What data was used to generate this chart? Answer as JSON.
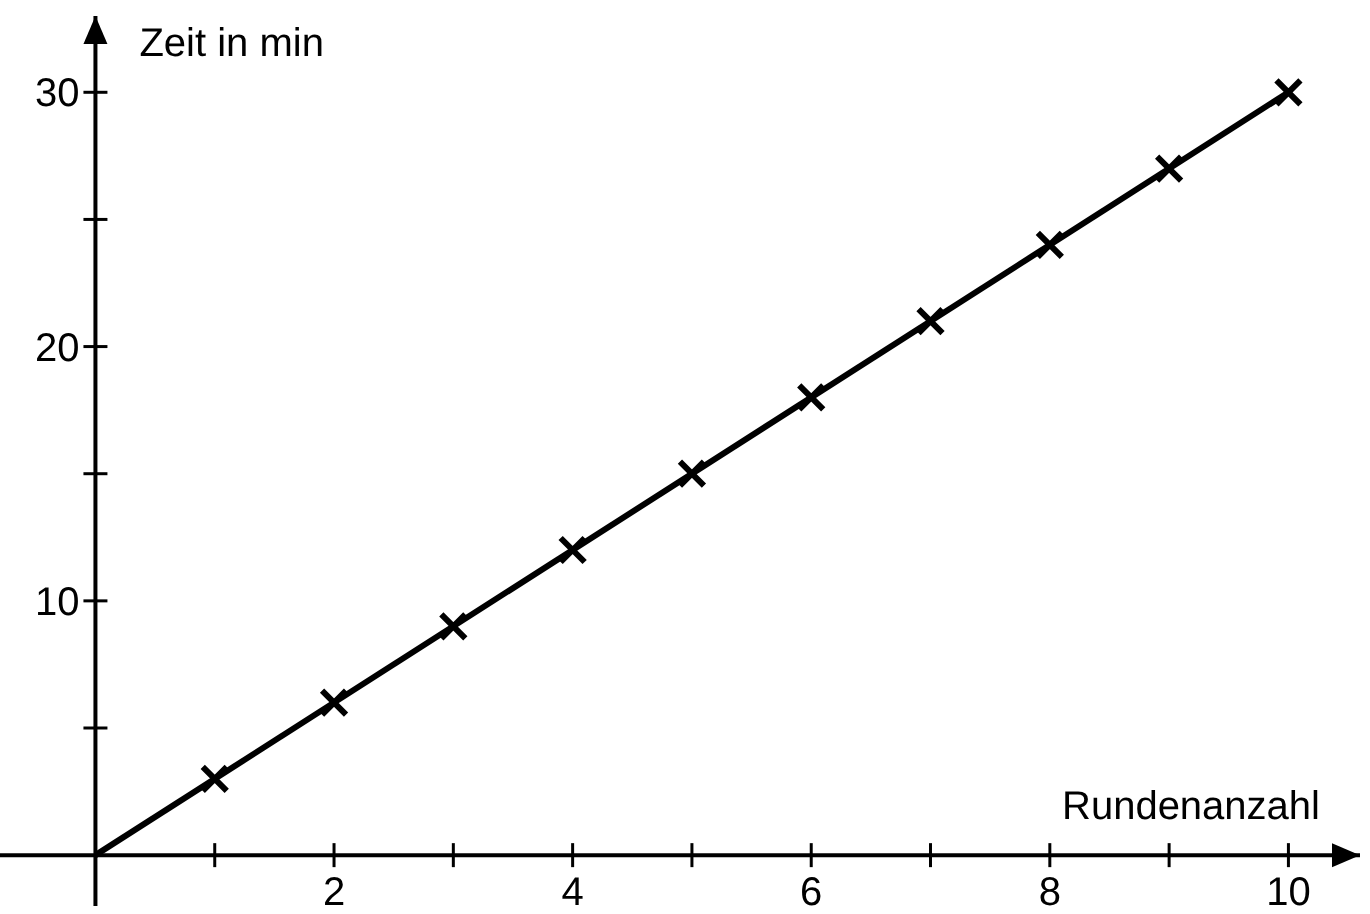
{
  "chart_data": {
    "type": "line",
    "xlabel": "Rundenanzahl",
    "ylabel": "Zeit in min",
    "xlim": [
      -0.8,
      10.6
    ],
    "ylim": [
      -2,
      33
    ],
    "xticks": [
      {
        "value": 1,
        "label": null
      },
      2,
      {
        "value": 3,
        "label": null
      },
      4,
      {
        "value": 5,
        "label": null
      },
      6,
      {
        "value": 7,
        "label": null
      },
      8,
      {
        "value": 9,
        "label": null
      },
      10
    ],
    "yticks": [
      {
        "value": 5,
        "label": null
      },
      10,
      {
        "value": 15,
        "label": null
      },
      20,
      {
        "value": 25,
        "label": null
      },
      30
    ],
    "grid": false,
    "series": [
      {
        "color": "#000000",
        "x": [
          0,
          10
        ],
        "values": [
          0,
          30
        ],
        "marker": "none",
        "line_style": "solid"
      },
      {
        "type": "scatter",
        "color": "#000000",
        "x": [
          1,
          2,
          3,
          4,
          5,
          6,
          7,
          8,
          9,
          10
        ],
        "values": [
          3,
          6,
          9,
          12,
          15,
          18,
          21,
          24,
          27,
          30
        ],
        "marker": "cross"
      }
    ]
  }
}
